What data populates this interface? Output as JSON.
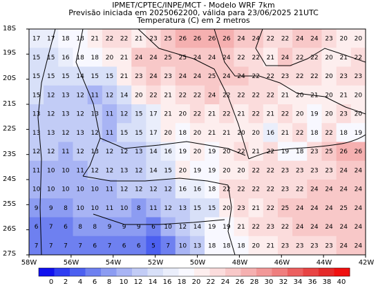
{
  "header": {
    "line1": "IPMET/CPTEC/INPE/MCT - Modelo WRF 7km",
    "line2": "Previsão iniciada em 2025062200, válida para 23/06/2025 21UTC",
    "line3": "Temperatura (C) em 2 metros"
  },
  "map": {
    "lat_labels": [
      "18S",
      "19S",
      "20S",
      "21S",
      "22S",
      "23S",
      "24S",
      "25S",
      "26S",
      "27S"
    ],
    "lon_labels": [
      "58W",
      "56W",
      "54W",
      "52W",
      "50W",
      "48W",
      "46W",
      "44W",
      "42W"
    ],
    "lon_range": [
      -58,
      -42
    ],
    "lat_range": [
      -27,
      -18
    ],
    "grid": [
      [
        17,
        17,
        18,
        18,
        21,
        22,
        22,
        21,
        23,
        25,
        26,
        26,
        26,
        26,
        24,
        24,
        22,
        22,
        24,
        24,
        23,
        20,
        20
      ],
      [
        15,
        15,
        16,
        18,
        18,
        20,
        21,
        24,
        24,
        25,
        25,
        24,
        24,
        24,
        22,
        22,
        21,
        24,
        22,
        22,
        20,
        21,
        22
      ],
      [
        15,
        15,
        15,
        14,
        15,
        15,
        21,
        23,
        24,
        23,
        24,
        24,
        25,
        24,
        24,
        22,
        22,
        23,
        22,
        22,
        20,
        23,
        23
      ],
      [
        15,
        12,
        13,
        12,
        11,
        12,
        14,
        20,
        22,
        21,
        22,
        22,
        24,
        22,
        22,
        22,
        22,
        21,
        20,
        21,
        20,
        21,
        20
      ],
      [
        13,
        12,
        13,
        12,
        13,
        11,
        12,
        15,
        17,
        21,
        20,
        22,
        21,
        22,
        21,
        22,
        21,
        22,
        20,
        19,
        20,
        23,
        20
      ],
      [
        13,
        13,
        12,
        13,
        12,
        11,
        15,
        15,
        17,
        20,
        18,
        20,
        21,
        21,
        20,
        20,
        16,
        21,
        22,
        18,
        22,
        18,
        19
      ],
      [
        12,
        12,
        11,
        12,
        13,
        12,
        12,
        13,
        14,
        16,
        19,
        20,
        19,
        20,
        22,
        21,
        22,
        19,
        18,
        23,
        25,
        26,
        26
      ],
      [
        11,
        10,
        10,
        11,
        12,
        12,
        13,
        12,
        14,
        15,
        20,
        19,
        19,
        20,
        20,
        22,
        22,
        23,
        23,
        23,
        23,
        24,
        24
      ],
      [
        10,
        10,
        10,
        10,
        10,
        11,
        12,
        12,
        12,
        12,
        16,
        16,
        18,
        22,
        22,
        22,
        22,
        23,
        22,
        24,
        24,
        24,
        24
      ],
      [
        9,
        9,
        8,
        10,
        10,
        11,
        10,
        8,
        11,
        12,
        13,
        15,
        15,
        20,
        23,
        21,
        22,
        25,
        24,
        24,
        24,
        25,
        24
      ],
      [
        6,
        7,
        6,
        8,
        8,
        9,
        9,
        9,
        6,
        10,
        12,
        14,
        19,
        19,
        21,
        22,
        23,
        22,
        24,
        24,
        24,
        24,
        24
      ],
      [
        7,
        7,
        7,
        7,
        6,
        7,
        6,
        6,
        5,
        7,
        10,
        13,
        18,
        18,
        18,
        20,
        21,
        23,
        23,
        23,
        23,
        24,
        24
      ]
    ]
  },
  "colorbar": {
    "ticks": [
      "0",
      "2",
      "4",
      "6",
      "8",
      "10",
      "12",
      "14",
      "16",
      "18",
      "20",
      "22",
      "24",
      "26",
      "28",
      "30",
      "32",
      "34",
      "36",
      "38",
      "40"
    ],
    "min": 0,
    "max": 40,
    "colors": [
      "#1010ee",
      "#2e3cf2",
      "#4c60f0",
      "#6e80f0",
      "#8c9cf2",
      "#a8b4f4",
      "#c2ccf6",
      "#d8e0f8",
      "#eaeefb",
      "#f8f8ff",
      "#fdeeee",
      "#fbdcdc",
      "#f8c8c8",
      "#f5b0b0",
      "#f29898",
      "#ef7e7e",
      "#ec6060",
      "#e84444",
      "#e42a2a",
      "#f01010"
    ]
  }
}
